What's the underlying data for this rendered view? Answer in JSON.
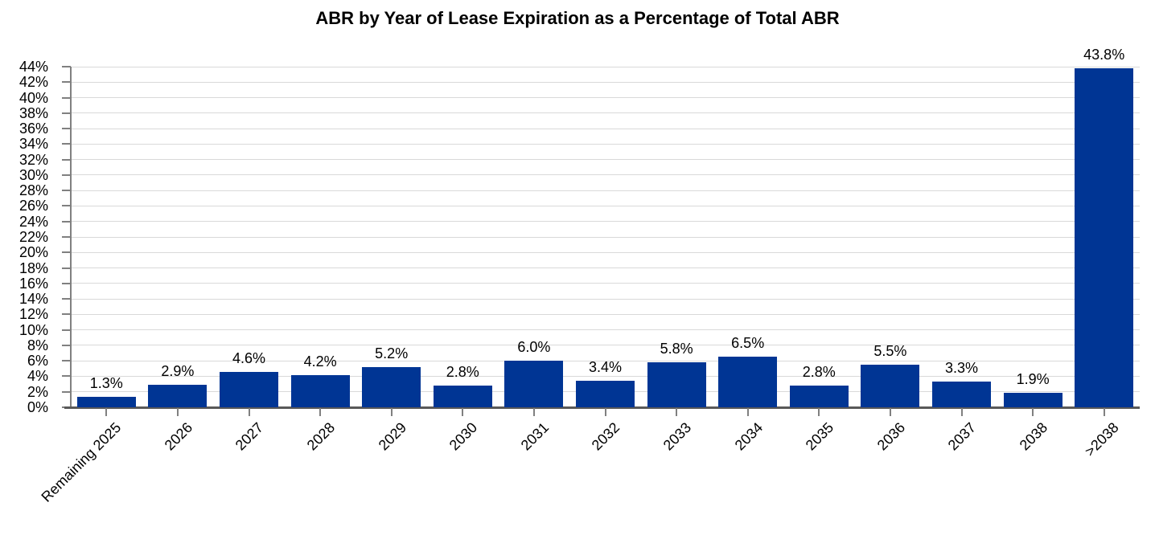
{
  "page": {
    "background": "#ffffff"
  },
  "chart_data": {
    "type": "bar",
    "title": "ABR by Year of Lease Expiration as a Percentage of Total ABR",
    "categories": [
      "Remaining 2025",
      "2026",
      "2027",
      "2028",
      "2029",
      "2030",
      "2031",
      "2032",
      "2033",
      "2034",
      "2035",
      "2036",
      "2037",
      "2038",
      ">2038"
    ],
    "values": [
      1.3,
      2.9,
      4.6,
      4.2,
      5.2,
      2.8,
      6.0,
      3.4,
      5.8,
      6.5,
      2.8,
      5.5,
      3.3,
      1.9,
      43.8
    ],
    "labels": [
      "1.3%",
      "2.9%",
      "4.6%",
      "4.2%",
      "5.2%",
      "2.8%",
      "6.0%",
      "3.4%",
      "5.8%",
      "6.5%",
      "2.8%",
      "5.5%",
      "3.3%",
      "1.9%",
      "43.8%"
    ],
    "xlabel": "",
    "ylabel": "",
    "ylim": [
      0,
      44
    ],
    "ytick_step": 2,
    "ytick_suffix": "%",
    "grid": true,
    "legend": "none",
    "bar_color": "#003594",
    "gridline_color": "#d9d9d9",
    "axis_color": "#808080",
    "x_axis_color": "#595959",
    "text_color": "#000000"
  }
}
